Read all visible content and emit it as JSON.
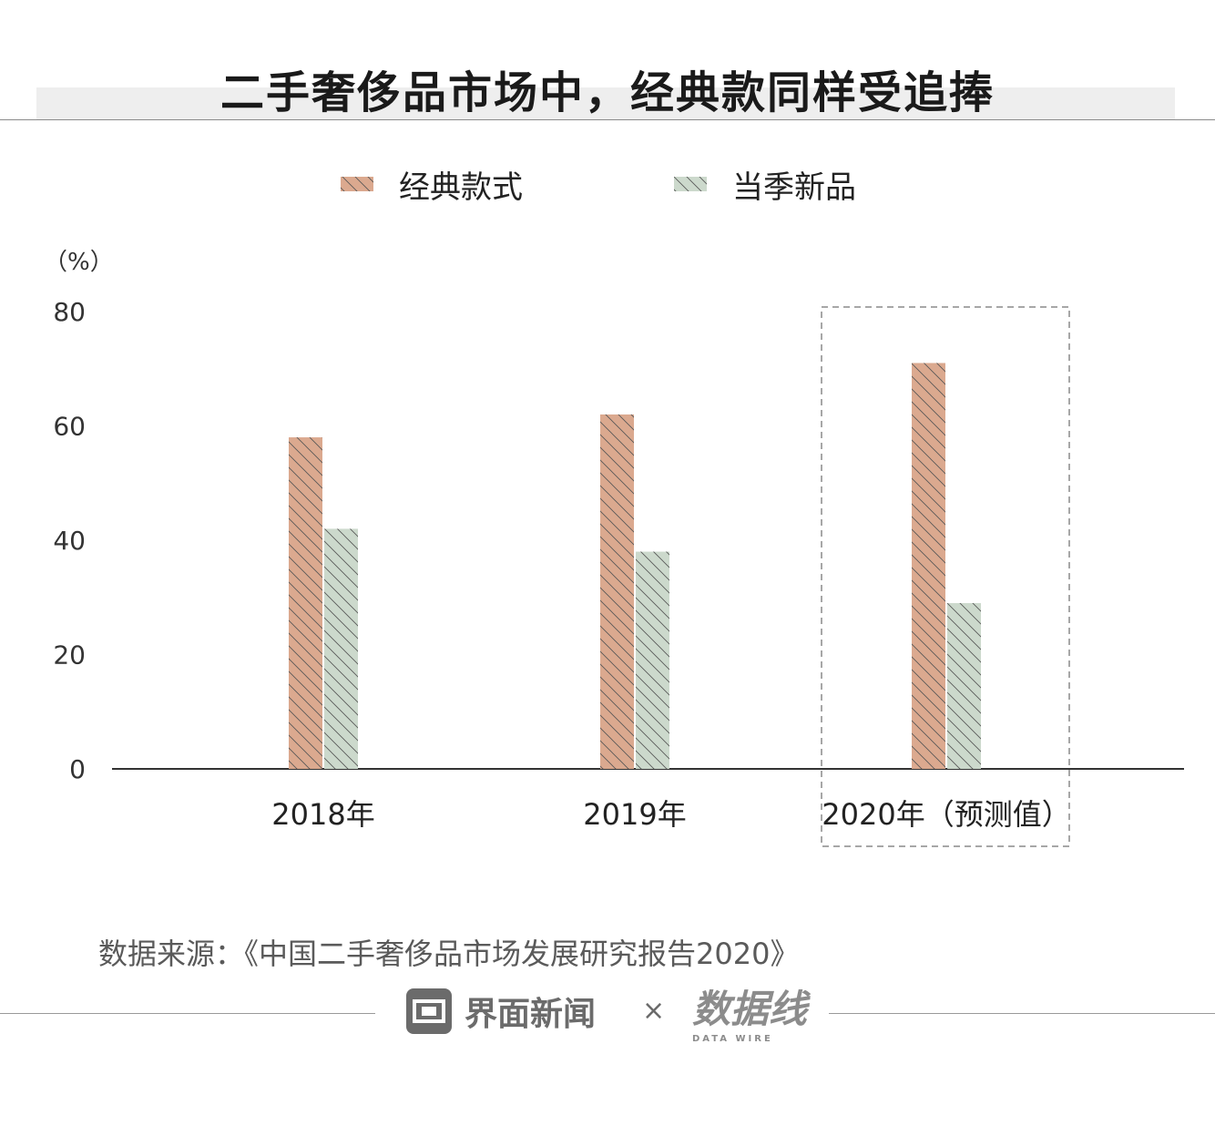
{
  "title": "二手奢侈品市场中，经典款同样受追捧",
  "legend": [
    {
      "label": "经典款式",
      "color": "#dba98f"
    },
    {
      "label": "当季新品",
      "color": "#ccd9cc"
    }
  ],
  "unit_label": "（%）",
  "chart_data": {
    "type": "bar",
    "categories": [
      "2018年",
      "2019年",
      "2020年（预测值）"
    ],
    "series": [
      {
        "name": "经典款式",
        "values": [
          58,
          62,
          71
        ]
      },
      {
        "name": "当季新品",
        "values": [
          42,
          38,
          29
        ]
      }
    ],
    "ylim": [
      0,
      80
    ],
    "yticks": [
      0,
      20,
      40,
      60,
      80
    ],
    "highlight_category": "2020年（预测值）"
  },
  "source": "数据来源：《中国二手奢侈品市场发展研究报告2020》",
  "footer": {
    "brand": "界面新闻",
    "times": "×",
    "datawire": "数据线",
    "datawire_sub": "DATA WIRE"
  }
}
